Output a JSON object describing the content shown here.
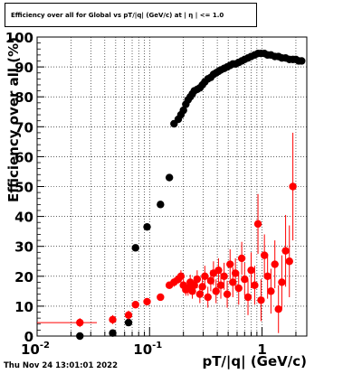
{
  "title": "Efficiency over all for Global vs pT/|q| (GeV/c) at | η | <= 1.0",
  "timestamp": "Thu Nov 24 13:01:01 2022",
  "chart_data": {
    "type": "scatter",
    "xlabel": "pT/|q| (GeV/c)",
    "ylabel": "Efficiency over all (%)",
    "xscale": "log",
    "xlim": [
      0.01,
      2.5
    ],
    "ylim": [
      0,
      100
    ],
    "grid": true,
    "yticks": [
      0,
      10,
      20,
      30,
      40,
      50,
      60,
      70,
      80,
      90,
      100
    ],
    "xticks": [
      "10^-2",
      "10^-1",
      "1"
    ],
    "series": [
      {
        "color": "#000000",
        "points": [
          {
            "x": 0.024,
            "y": 0.0
          },
          {
            "x": 0.047,
            "y": 1.0
          },
          {
            "x": 0.065,
            "y": 4.5
          },
          {
            "x": 0.075,
            "y": 29.5
          },
          {
            "x": 0.095,
            "y": 36.5
          },
          {
            "x": 0.125,
            "y": 44.0
          },
          {
            "x": 0.15,
            "y": 53.0
          },
          {
            "x": 0.165,
            "y": 71.0
          },
          {
            "x": 0.18,
            "y": 72.5
          },
          {
            "x": 0.19,
            "y": 74.0
          },
          {
            "x": 0.2,
            "y": 75.5
          },
          {
            "x": 0.21,
            "y": 77.5
          },
          {
            "x": 0.22,
            "y": 79.0
          },
          {
            "x": 0.23,
            "y": 80.0
          },
          {
            "x": 0.24,
            "y": 81.0
          },
          {
            "x": 0.25,
            "y": 82.0
          },
          {
            "x": 0.265,
            "y": 82.5
          },
          {
            "x": 0.28,
            "y": 83.0
          },
          {
            "x": 0.295,
            "y": 84.0
          },
          {
            "x": 0.31,
            "y": 85.0
          },
          {
            "x": 0.33,
            "y": 86.0
          },
          {
            "x": 0.35,
            "y": 86.5
          },
          {
            "x": 0.37,
            "y": 87.5
          },
          {
            "x": 0.39,
            "y": 88.0
          },
          {
            "x": 0.41,
            "y": 88.5
          },
          {
            "x": 0.43,
            "y": 89.0
          },
          {
            "x": 0.46,
            "y": 89.5
          },
          {
            "x": 0.49,
            "y": 90.0
          },
          {
            "x": 0.52,
            "y": 90.5
          },
          {
            "x": 0.55,
            "y": 91.0
          },
          {
            "x": 0.58,
            "y": 91.0
          },
          {
            "x": 0.62,
            "y": 91.5
          },
          {
            "x": 0.66,
            "y": 92.0
          },
          {
            "x": 0.7,
            "y": 92.5
          },
          {
            "x": 0.75,
            "y": 93.0
          },
          {
            "x": 0.8,
            "y": 93.5
          },
          {
            "x": 0.86,
            "y": 94.0
          },
          {
            "x": 0.92,
            "y": 94.5
          },
          {
            "x": 0.98,
            "y": 94.5
          },
          {
            "x": 1.05,
            "y": 94.5
          },
          {
            "x": 1.12,
            "y": 94.0
          },
          {
            "x": 1.2,
            "y": 94.0
          },
          {
            "x": 1.3,
            "y": 93.5
          },
          {
            "x": 1.4,
            "y": 93.5
          },
          {
            "x": 1.5,
            "y": 93.0
          },
          {
            "x": 1.62,
            "y": 93.0
          },
          {
            "x": 1.75,
            "y": 92.5
          },
          {
            "x": 1.88,
            "y": 92.5
          },
          {
            "x": 2.0,
            "y": 92.5
          },
          {
            "x": 2.12,
            "y": 92.0
          },
          {
            "x": 2.25,
            "y": 92.0
          }
        ]
      },
      {
        "color": "#ff0000",
        "points": [
          {
            "x": 0.024,
            "y": 4.5,
            "err": 1.5,
            "xerr": [
              0.01,
              0.034
            ]
          },
          {
            "x": 0.047,
            "y": 5.5,
            "err": 1.5
          },
          {
            "x": 0.065,
            "y": 7.0,
            "err": 1.5
          },
          {
            "x": 0.075,
            "y": 10.5,
            "err": 1.0
          },
          {
            "x": 0.095,
            "y": 11.5,
            "err": 1.0
          },
          {
            "x": 0.125,
            "y": 13.0,
            "err": 1.0
          },
          {
            "x": 0.15,
            "y": 17.0,
            "err": 1.2
          },
          {
            "x": 0.165,
            "y": 18.0,
            "err": 1.5
          },
          {
            "x": 0.18,
            "y": 19.0,
            "err": 1.5
          },
          {
            "x": 0.19,
            "y": 20.0,
            "err": 2.0
          },
          {
            "x": 0.2,
            "y": 17.0,
            "err": 2.0
          },
          {
            "x": 0.21,
            "y": 15.5,
            "err": 2.0
          },
          {
            "x": 0.22,
            "y": 16.0,
            "err": 2.5
          },
          {
            "x": 0.23,
            "y": 18.0,
            "err": 2.5
          },
          {
            "x": 0.24,
            "y": 15.0,
            "err": 2.5
          },
          {
            "x": 0.25,
            "y": 17.0,
            "err": 3.0
          },
          {
            "x": 0.265,
            "y": 19.0,
            "err": 3.0
          },
          {
            "x": 0.28,
            "y": 14.0,
            "err": 3.0
          },
          {
            "x": 0.295,
            "y": 16.5,
            "err": 3.0
          },
          {
            "x": 0.31,
            "y": 20.0,
            "err": 3.5
          },
          {
            "x": 0.33,
            "y": 13.0,
            "err": 3.5
          },
          {
            "x": 0.35,
            "y": 18.5,
            "err": 3.5
          },
          {
            "x": 0.37,
            "y": 21.0,
            "err": 4.0
          },
          {
            "x": 0.39,
            "y": 15.0,
            "err": 4.0
          },
          {
            "x": 0.41,
            "y": 22.0,
            "err": 4.0
          },
          {
            "x": 0.43,
            "y": 17.0,
            "err": 4.5
          },
          {
            "x": 0.46,
            "y": 20.0,
            "err": 4.5
          },
          {
            "x": 0.49,
            "y": 14.0,
            "err": 4.5
          },
          {
            "x": 0.52,
            "y": 24.0,
            "err": 5.0
          },
          {
            "x": 0.55,
            "y": 18.0,
            "err": 5.0
          },
          {
            "x": 0.58,
            "y": 21.0,
            "err": 5.0
          },
          {
            "x": 0.62,
            "y": 16.0,
            "err": 5.5
          },
          {
            "x": 0.66,
            "y": 26.0,
            "err": 5.5
          },
          {
            "x": 0.7,
            "y": 19.0,
            "err": 5.5
          },
          {
            "x": 0.75,
            "y": 13.0,
            "err": 6.0
          },
          {
            "x": 0.8,
            "y": 22.0,
            "err": 6.0
          },
          {
            "x": 0.86,
            "y": 17.0,
            "err": 6.5
          },
          {
            "x": 0.92,
            "y": 37.5,
            "err": 10.0
          },
          {
            "x": 0.98,
            "y": 12.0,
            "err": 7.0
          },
          {
            "x": 1.05,
            "y": 27.0,
            "err": 7.0
          },
          {
            "x": 1.12,
            "y": 20.0,
            "err": 7.5
          },
          {
            "x": 1.2,
            "y": 15.0,
            "err": 7.5
          },
          {
            "x": 1.3,
            "y": 24.0,
            "err": 8.0
          },
          {
            "x": 1.4,
            "y": 9.0,
            "err": 8.0
          },
          {
            "x": 1.5,
            "y": 18.0,
            "err": 9.0
          },
          {
            "x": 1.62,
            "y": 28.5,
            "err": 12.0
          },
          {
            "x": 1.75,
            "y": 25.0,
            "err": 12.0
          },
          {
            "x": 1.88,
            "y": 50.0,
            "err": 18.0
          }
        ]
      }
    ]
  }
}
